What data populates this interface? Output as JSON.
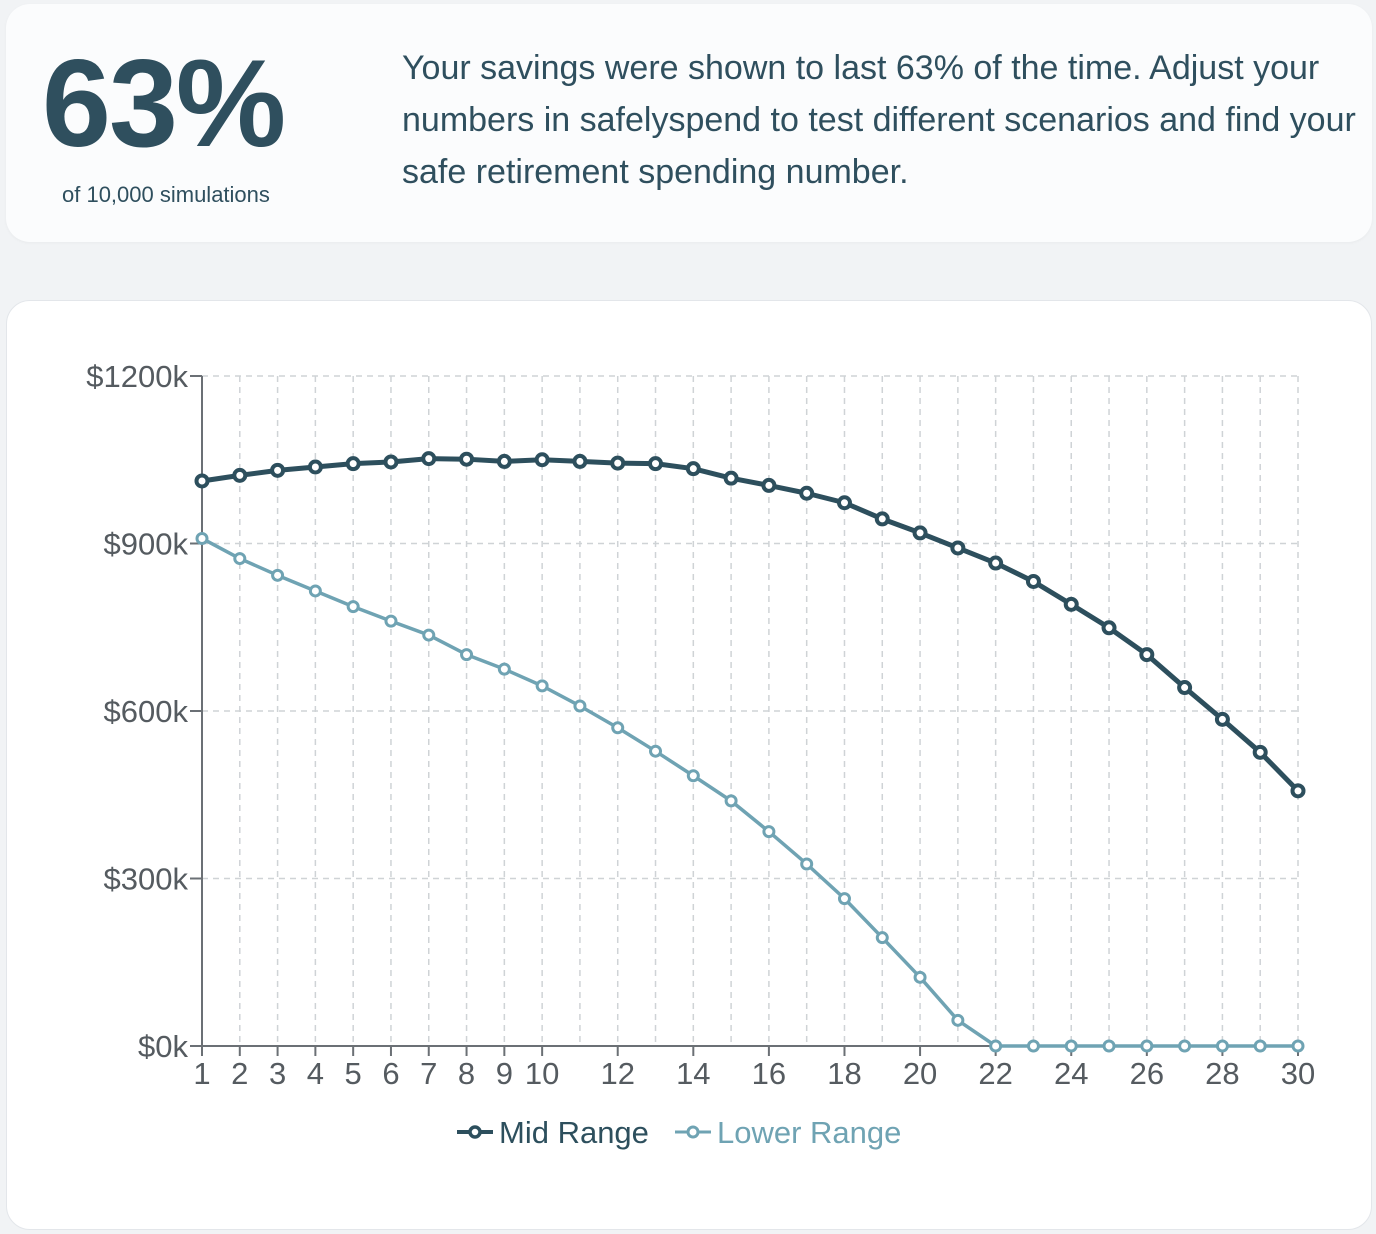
{
  "summary": {
    "percent": "63%",
    "caption": "of 10,000 simulations",
    "message": "Your savings were shown to last 63% of the time. Adjust your numbers in safelyspend to test different scenarios and find your safe retirement spending number."
  },
  "chart_data": {
    "type": "line",
    "title": "",
    "xlabel": "",
    "ylabel": "",
    "x": [
      1,
      2,
      3,
      4,
      5,
      6,
      7,
      8,
      9,
      10,
      11,
      12,
      13,
      14,
      15,
      16,
      17,
      18,
      19,
      20,
      21,
      22,
      23,
      24,
      25,
      26,
      27,
      28,
      29,
      30
    ],
    "x_tick_labels": [
      "1",
      "2",
      "3",
      "4",
      "5",
      "6",
      "7",
      "8",
      "9",
      "10",
      "12",
      "14",
      "16",
      "18",
      "20",
      "22",
      "24",
      "26",
      "28",
      "30"
    ],
    "y_tick_labels": [
      "$0k",
      "$300k",
      "$600k",
      "$900k",
      "$1200k"
    ],
    "ylim": [
      0,
      1200
    ],
    "xlim": [
      1,
      30
    ],
    "grid": true,
    "legend_position": "bottom-center",
    "series": [
      {
        "name": "Mid Range",
        "color": "#2d4f5d",
        "values": [
          1012,
          1022,
          1031,
          1037,
          1043,
          1046,
          1052,
          1051,
          1047,
          1050,
          1047,
          1044,
          1043,
          1034,
          1017,
          1004,
          990,
          973,
          944,
          919,
          892,
          865,
          832,
          791,
          749,
          701,
          642,
          585,
          526,
          457
        ]
      },
      {
        "name": "Lower Range",
        "color": "#6fa3b3",
        "values": [
          909,
          873,
          843,
          815,
          787,
          761,
          736,
          701,
          675,
          645,
          609,
          570,
          528,
          484,
          439,
          384,
          326,
          264,
          194,
          123,
          46,
          0,
          0,
          0,
          0,
          0,
          0,
          0,
          0,
          0
        ]
      }
    ]
  }
}
